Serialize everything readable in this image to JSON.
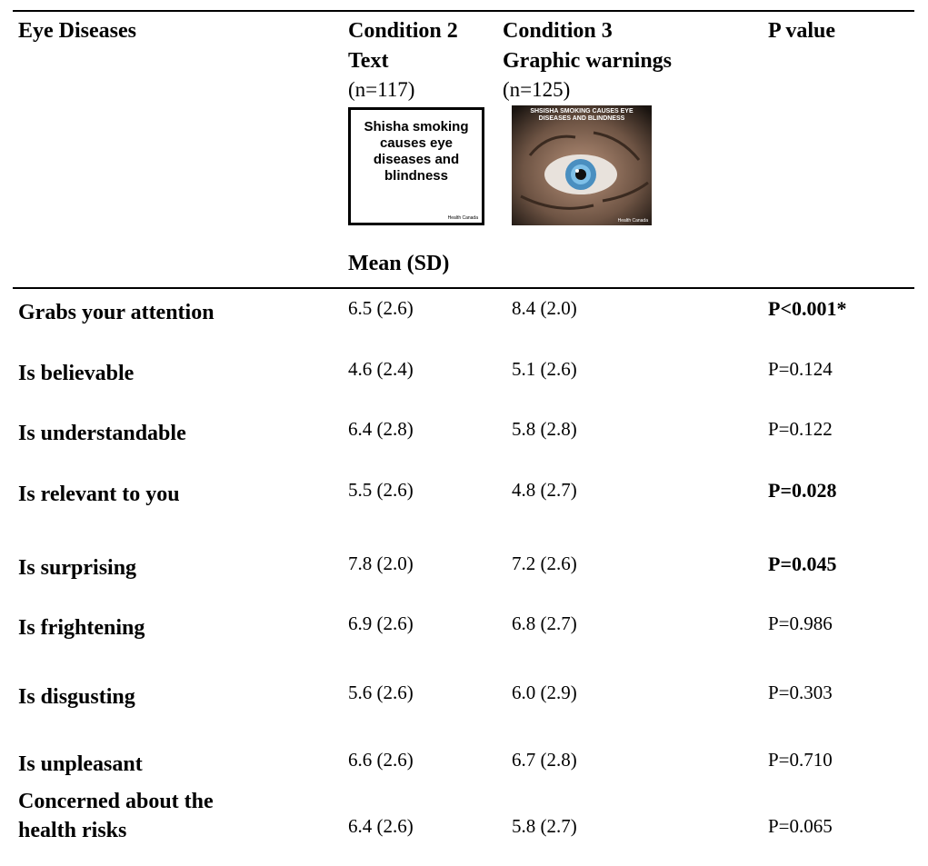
{
  "table": {
    "header": {
      "column1": "Eye Diseases",
      "column2": [
        "Condition 2",
        "Text"
      ],
      "column2_n": "(n=117)",
      "column3": [
        "Condition 3",
        "Graphic warnings"
      ],
      "column3_n": "(n=125)",
      "column4": "P value",
      "subheader": "Mean (SD)"
    },
    "images": {
      "text_warning": {
        "lines": [
          "Shisha smoking",
          "causes eye",
          "diseases and",
          "blindness"
        ],
        "credit": "Health Canada"
      },
      "graphic_warning": {
        "lines": [
          "SHSISHA SMOKING CAUSES EYE",
          "DISEASES AND BLINDNESS"
        ],
        "credit": "Health Canada"
      }
    },
    "rows": [
      {
        "label": [
          "Grabs your attention"
        ],
        "condition2": "6.5 (2.6)",
        "condition3": "8.4 (2.0)",
        "p_value": "P<0.001*",
        "bold": true
      },
      {
        "label": [
          "Is believable"
        ],
        "condition2": "4.6 (2.4)",
        "condition3": "5.1 (2.6)",
        "p_value": "P=0.124",
        "bold": false
      },
      {
        "label": [
          "Is understandable"
        ],
        "condition2": "6.4 (2.8)",
        "condition3": "5.8 (2.8)",
        "p_value": "P=0.122",
        "bold": false
      },
      {
        "label": [
          "Is relevant to you"
        ],
        "condition2": "5.5 (2.6)",
        "condition3": "4.8 (2.7)",
        "p_value": "P=0.028",
        "bold": true
      },
      {
        "label": [
          "Is surprising"
        ],
        "condition2": "7.8 (2.0)",
        "condition3": "7.2 (2.6)",
        "p_value": "P=0.045",
        "bold": true
      },
      {
        "label": [
          "Is frightening"
        ],
        "condition2": "6.9 (2.6)",
        "condition3": "6.8 (2.7)",
        "p_value": "P=0.986",
        "bold": false
      },
      {
        "label": [
          "Is disgusting"
        ],
        "condition2": "5.6 (2.6)",
        "condition3": "6.0 (2.9)",
        "p_value": "P=0.303",
        "bold": false
      },
      {
        "label": [
          "Is unpleasant"
        ],
        "condition2": "6.6 (2.6)",
        "condition3": "6.7 (2.8)",
        "p_value": "P=0.710",
        "bold": false
      },
      {
        "label": [
          "Concerned about the",
          "health risks"
        ],
        "condition2": "6.4 (2.6)",
        "condition3": "5.8 (2.7)",
        "p_value": "P=0.065",
        "bold": false
      }
    ]
  }
}
